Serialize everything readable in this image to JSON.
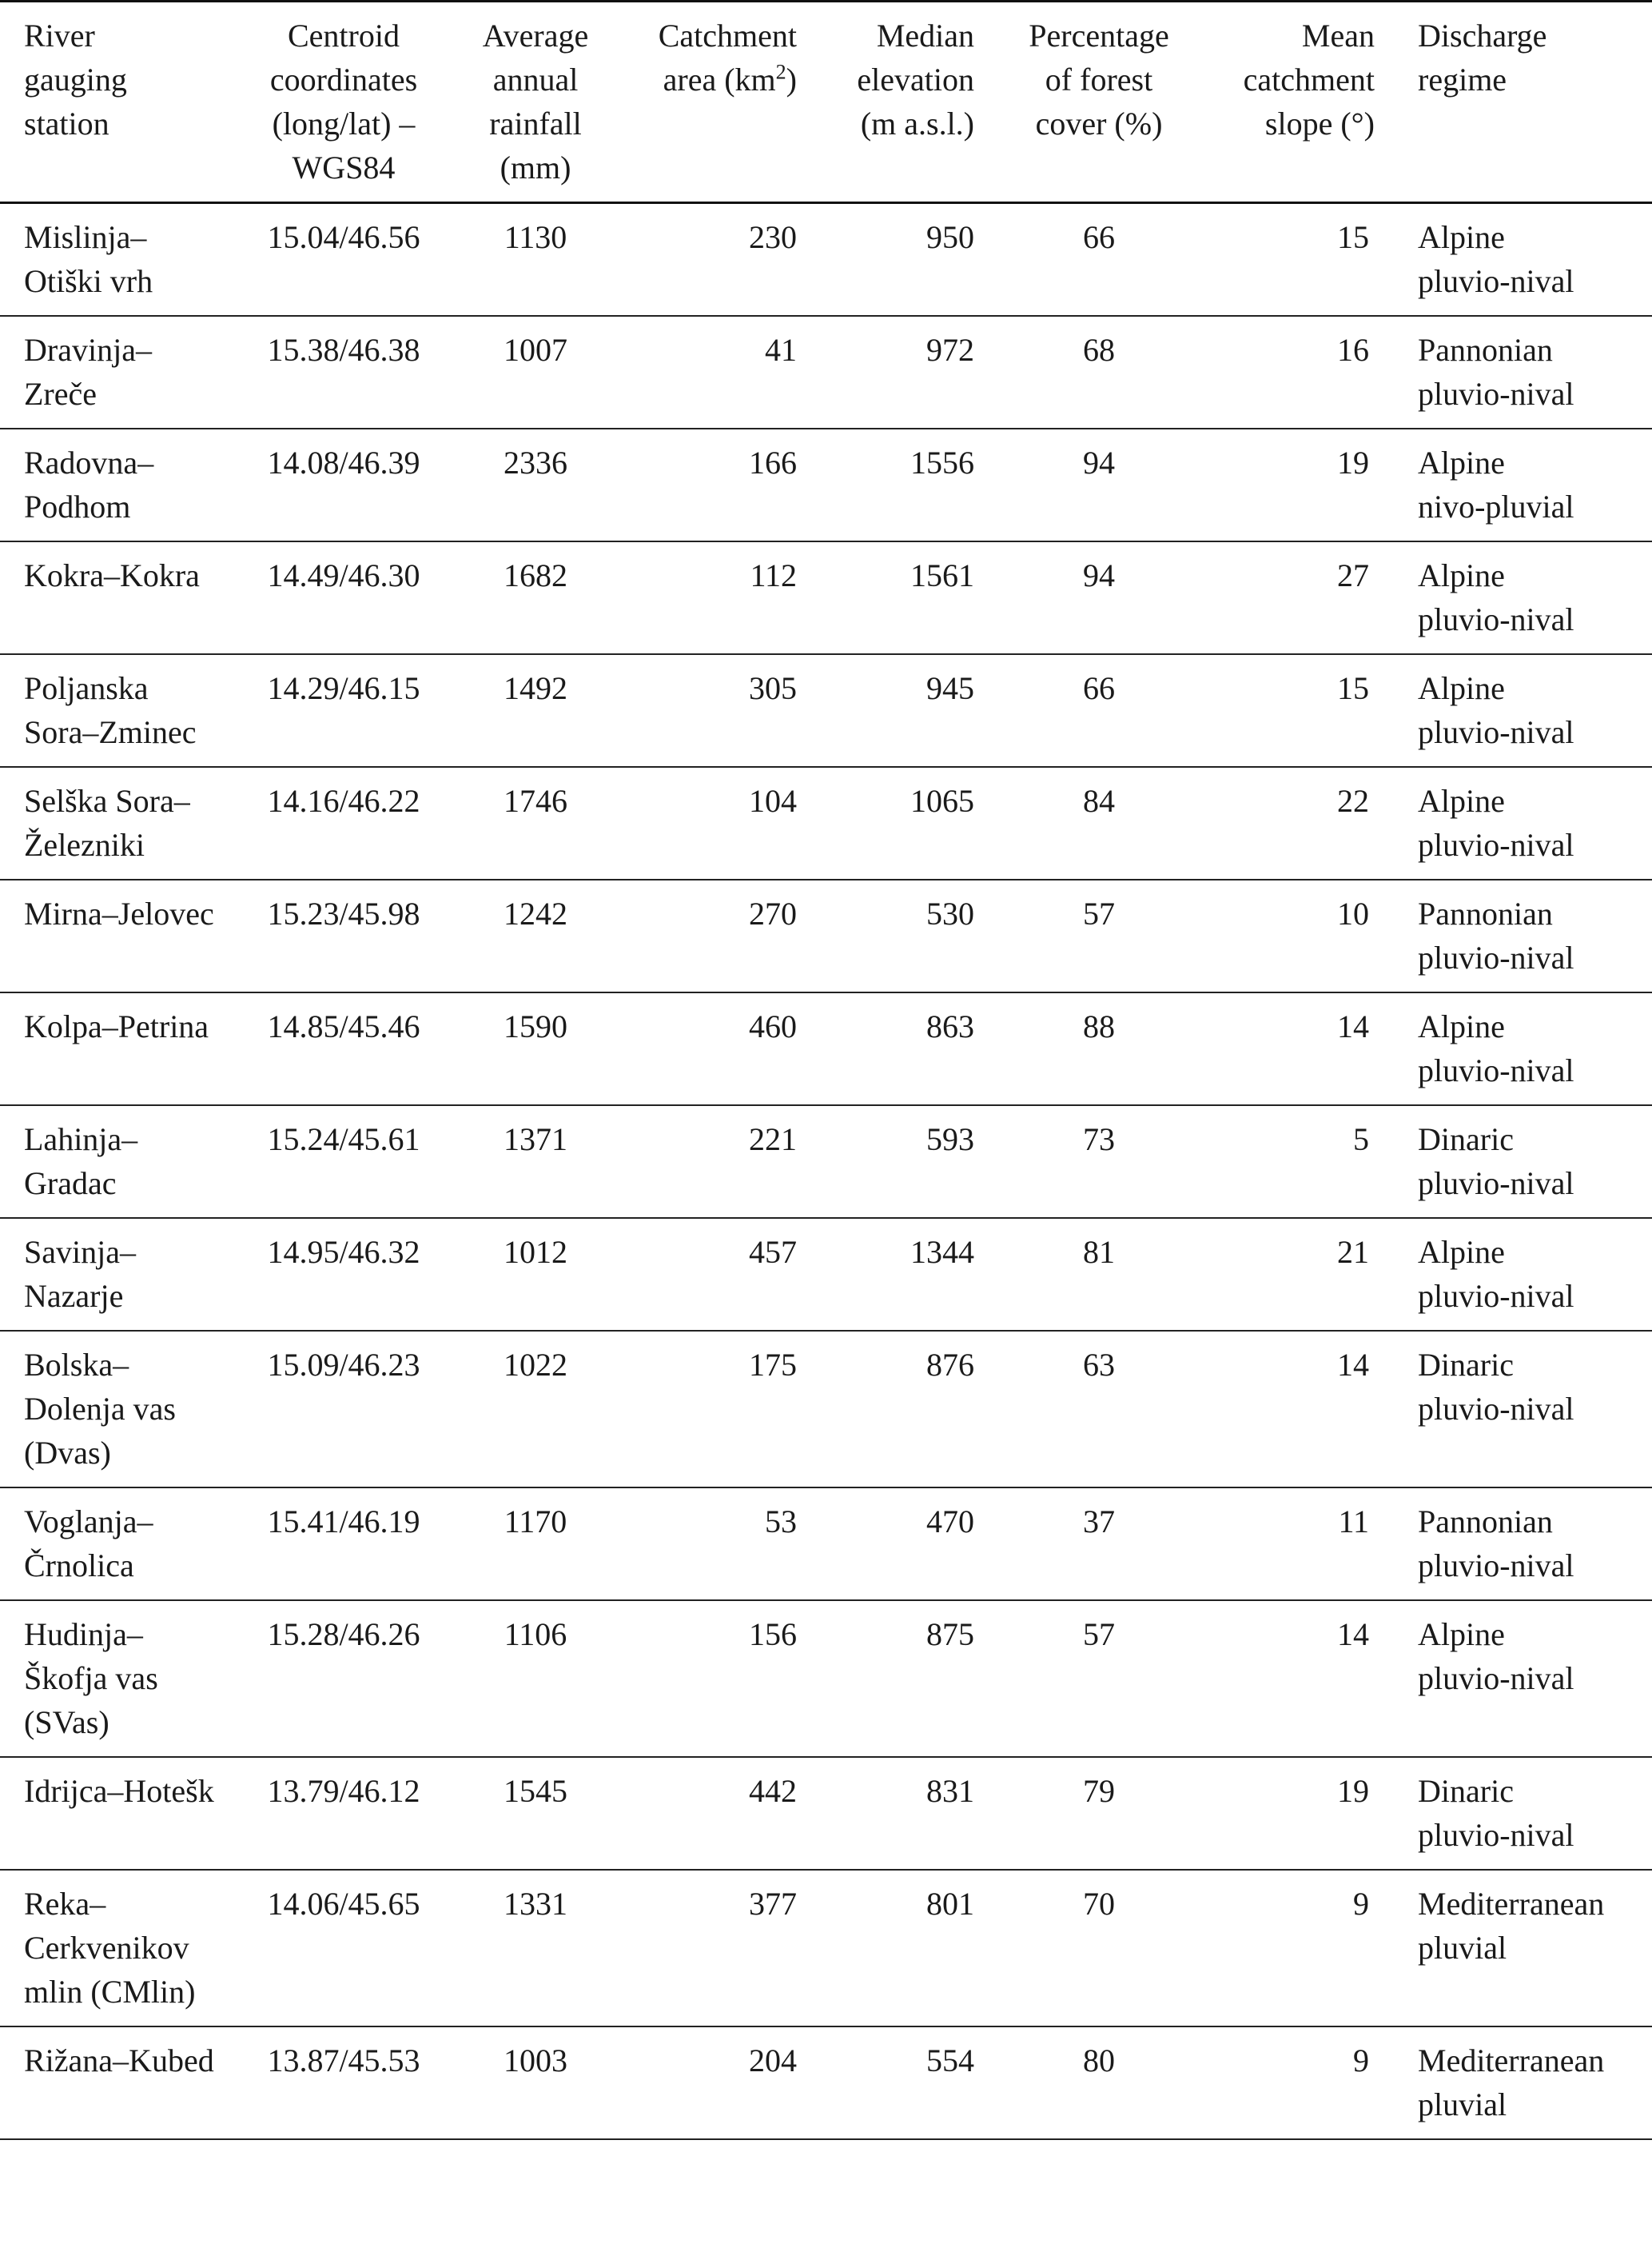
{
  "table": {
    "headers": {
      "station": "River gauging station",
      "coords": "Centroid coordinates (long/lat) – WGS84",
      "rainfall": "Average annual rainfall (mm)",
      "area_prefix": "Catchment area (km",
      "area_sup": "2",
      "area_suffix": ")",
      "elevation": "Median elevation (m a.s.l.)",
      "forest": "Percentage of forest cover (%)",
      "slope": "Mean catchment slope (°)",
      "regime": "Discharge regime"
    },
    "rows": [
      {
        "station": "Mislinja–Otiški vrh",
        "coords": "15.04/46.56",
        "rainfall": "1130",
        "area": "230",
        "elevation": "950",
        "forest": "66",
        "slope": "15",
        "regime": "Alpine pluvio-nival"
      },
      {
        "station": "Dravinja–Zreče",
        "coords": "15.38/46.38",
        "rainfall": "1007",
        "area": "41",
        "elevation": "972",
        "forest": "68",
        "slope": "16",
        "regime": "Pannonian pluvio-nival"
      },
      {
        "station": "Radovna–Podhom",
        "coords": "14.08/46.39",
        "rainfall": "2336",
        "area": "166",
        "elevation": "1556",
        "forest": "94",
        "slope": "19",
        "regime": "Alpine nivo-pluvial"
      },
      {
        "station": "Kokra–Kokra",
        "coords": "14.49/46.30",
        "rainfall": "1682",
        "area": "112",
        "elevation": "1561",
        "forest": "94",
        "slope": "27",
        "regime": "Alpine pluvio-nival"
      },
      {
        "station": "Poljanska Sora–Zminec",
        "coords": "14.29/46.15",
        "rainfall": "1492",
        "area": "305",
        "elevation": "945",
        "forest": "66",
        "slope": "15",
        "regime": "Alpine pluvio-nival"
      },
      {
        "station": "Selška Sora–Železniki",
        "coords": "14.16/46.22",
        "rainfall": "1746",
        "area": "104",
        "elevation": "1065",
        "forest": "84",
        "slope": "22",
        "regime": "Alpine pluvio-nival"
      },
      {
        "station": "Mirna–Jelovec",
        "coords": "15.23/45.98",
        "rainfall": "1242",
        "area": "270",
        "elevation": "530",
        "forest": "57",
        "slope": "10",
        "regime": "Pannonian pluvio-nival"
      },
      {
        "station": "Kolpa–Petrina",
        "coords": "14.85/45.46",
        "rainfall": "1590",
        "area": "460",
        "elevation": "863",
        "forest": "88",
        "slope": "14",
        "regime": "Alpine pluvio-nival"
      },
      {
        "station": "Lahinja–Gradac",
        "coords": "15.24/45.61",
        "rainfall": "1371",
        "area": "221",
        "elevation": "593",
        "forest": "73",
        "slope": "5",
        "regime": "Dinaric pluvio-nival"
      },
      {
        "station": "Savinja–Nazarje",
        "coords": "14.95/46.32",
        "rainfall": "1012",
        "area": "457",
        "elevation": "1344",
        "forest": "81",
        "slope": "21",
        "regime": "Alpine pluvio-nival"
      },
      {
        "station": "Bolska–Dolenja vas (Dvas)",
        "coords": "15.09/46.23",
        "rainfall": "1022",
        "area": "175",
        "elevation": "876",
        "forest": "63",
        "slope": "14",
        "regime": "Dinaric pluvio-nival"
      },
      {
        "station": "Voglanja–Črnolica",
        "coords": "15.41/46.19",
        "rainfall": "1170",
        "area": "53",
        "elevation": "470",
        "forest": "37",
        "slope": "11",
        "regime": "Pannonian pluvio-nival"
      },
      {
        "station": "Hudinja–Škofja vas (SVas)",
        "coords": "15.28/46.26",
        "rainfall": "1106",
        "area": "156",
        "elevation": "875",
        "forest": "57",
        "slope": "14",
        "regime": "Alpine pluvio-nival"
      },
      {
        "station": "Idrijca–Hotešk",
        "coords": "13.79/46.12",
        "rainfall": "1545",
        "area": "442",
        "elevation": "831",
        "forest": "79",
        "slope": "19",
        "regime": "Dinaric pluvio-nival"
      },
      {
        "station": "Reka–Cerkvenikov mlin (CMlin)",
        "coords": "14.06/45.65",
        "rainfall": "1331",
        "area": "377",
        "elevation": "801",
        "forest": "70",
        "slope": "9",
        "regime": "Mediterranean pluvial"
      },
      {
        "station": "Rižana–Kubed",
        "coords": "13.87/45.53",
        "rainfall": "1003",
        "area": "204",
        "elevation": "554",
        "forest": "80",
        "slope": "9",
        "regime": "Mediterranean pluvial"
      }
    ]
  }
}
